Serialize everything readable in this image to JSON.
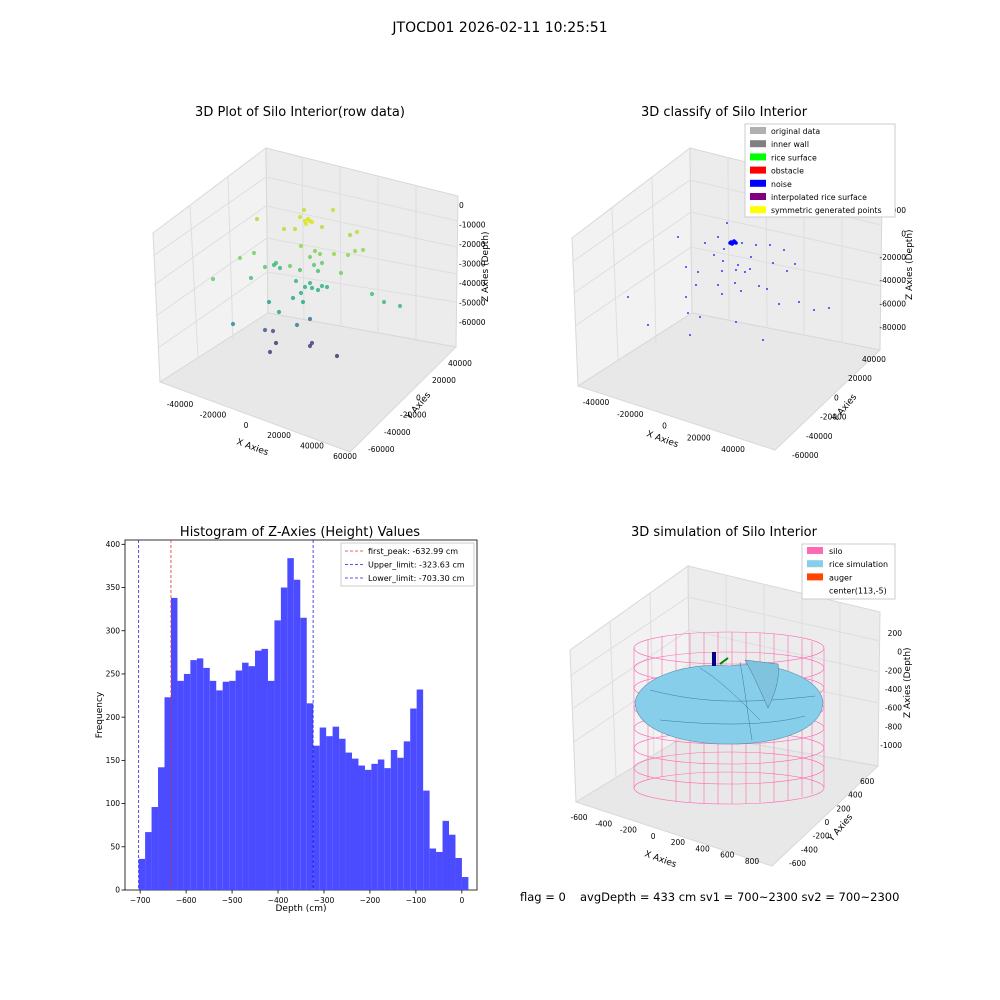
{
  "suptitle": "JTOCD01 2026-02-11 10:25:51",
  "footer": {
    "flag": "flag = 0",
    "avg": "avgDepth = 433 cm  sv1 = 700~2300  sv2 = 700~2300"
  },
  "colors": {
    "hist_bar": "#4b4bff",
    "peak_line": "#e03030",
    "limit_line": "#2020e0",
    "silo": "#ff69b4",
    "rice": "#87ceeb",
    "auger": "#ff4500",
    "pane": "#f2f2f2"
  },
  "chart_data": [
    {
      "type": "scatter",
      "title": "3D Plot of Silo Interior(row data)",
      "xlabel": "X Axies",
      "ylabel": "Y Axies",
      "zlabel": "Z Axies (Depth)",
      "x_ticks": [
        "-40000",
        "-20000",
        "0",
        "20000",
        "40000",
        "60000"
      ],
      "y_ticks": [
        "-60000",
        "-40000",
        "-20000",
        "0",
        "20000",
        "40000"
      ],
      "z_ticks": [
        "0",
        "-10000",
        "-20000",
        "-30000",
        "-40000",
        "-50000",
        "-60000"
      ],
      "colormap": "viridis (by depth)"
    },
    {
      "type": "scatter",
      "title": "3D classify of Silo Interior",
      "xlabel": "X Axies",
      "ylabel": "Y Axies",
      "zlabel": "Z Axies (Depth)",
      "x_ticks": [
        "-40000",
        "-20000",
        "0",
        "20000",
        "40000"
      ],
      "y_ticks": [
        "-60000",
        "-40000",
        "-20000",
        "0",
        "20000",
        "40000"
      ],
      "z_ticks": [
        "20000",
        "0",
        "-20000",
        "-40000",
        "-60000",
        "-80000"
      ],
      "legend": [
        {
          "label": "original data",
          "color": "#b0b0b0"
        },
        {
          "label": "inner wall",
          "color": "#808080"
        },
        {
          "label": "rice surface",
          "color": "#00ff00"
        },
        {
          "label": "obstacle",
          "color": "#ff0000"
        },
        {
          "label": "noise",
          "color": "#0000ff"
        },
        {
          "label": "interpolated rice surface",
          "color": "#800080"
        },
        {
          "label": "symmetric generated points",
          "color": "#ffff00"
        }
      ]
    },
    {
      "type": "bar",
      "title": "Histogram of Z-Axies (Height) Values",
      "xlabel": "Depth (cm)",
      "ylabel": "Frequency",
      "xlim": [
        -733,
        33
      ],
      "ylim": [
        0,
        405
      ],
      "x_ticks": [
        -700,
        -600,
        -500,
        -400,
        -300,
        -200,
        -100,
        0
      ],
      "y_ticks": [
        0,
        50,
        100,
        150,
        200,
        250,
        300,
        350,
        400
      ],
      "bin_start": -703.3,
      "bin_width": 14.07,
      "values": [
        36,
        67,
        96,
        142,
        223,
        338,
        242,
        250,
        266,
        268,
        257,
        242,
        231,
        241,
        242,
        254,
        263,
        259,
        277,
        279,
        242,
        312,
        350,
        384,
        359,
        315,
        216,
        167,
        188,
        178,
        189,
        175,
        159,
        152,
        144,
        139,
        146,
        151,
        141,
        162,
        153,
        172,
        210,
        232,
        115,
        48,
        44,
        80,
        64,
        37,
        15
      ],
      "lines": [
        {
          "label": "first_peak: -632.99 cm",
          "x": -632.99,
          "kind": "peak"
        },
        {
          "label": "Upper_limit: -323.63 cm",
          "x": -323.63,
          "kind": "limit"
        },
        {
          "label": "Lower_limit: -703.30 cm",
          "x": -703.3,
          "kind": "limit"
        }
      ],
      "grid": false,
      "legend_position": "top-right"
    },
    {
      "type": "surface",
      "title": "3D simulation of Silo Interior",
      "xlabel": "X Axies",
      "ylabel": "Y Axies",
      "zlabel": "Z Axies (Depth)",
      "x_ticks": [
        "-600",
        "-400",
        "-200",
        "0",
        "200",
        "400",
        "600",
        "800"
      ],
      "y_ticks": [
        "-600",
        "-400",
        "-200",
        "0",
        "200",
        "400",
        "600"
      ],
      "z_ticks": [
        "200",
        "0",
        "-200",
        "-400",
        "-600",
        "-800",
        "-1000"
      ],
      "legend": [
        {
          "label": "silo",
          "color": "#ff69b4"
        },
        {
          "label": "rice simulation",
          "color": "#87ceeb"
        },
        {
          "label": "auger",
          "color": "#ff4500"
        },
        {
          "label": "center(113,-5)",
          "color": "#ffffff"
        }
      ]
    }
  ]
}
